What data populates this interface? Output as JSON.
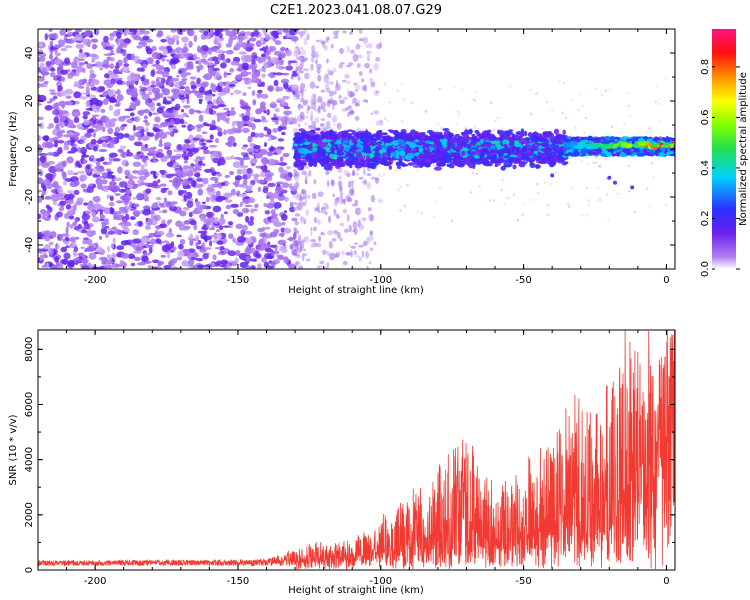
{
  "title": "C2E1.2023.041.08.07.G29",
  "colors": {
    "snr_line": "#f03a32",
    "axis": "#000000"
  },
  "chart_data": [
    {
      "type": "heatmap",
      "title": "C2E1.2023.041.08.07.G29",
      "xlabel": "Height of straight line (km)",
      "ylabel": "Frequency (Hz)",
      "xlim": [
        -220,
        3
      ],
      "ylim": [
        -50,
        50
      ],
      "x_ticks": [
        -200,
        -150,
        -100,
        -50,
        0
      ],
      "y_ticks": [
        -40,
        -20,
        0,
        20,
        40
      ],
      "x_tick_labels": [
        "-200",
        "-150",
        "-100",
        "-50",
        "0"
      ],
      "y_tick_labels": [
        "-40",
        "-20",
        "0",
        "20",
        "40"
      ],
      "colorbar": {
        "label": "Normalized spectral amplitude",
        "range": [
          0,
          0.95
        ],
        "ticks": [
          0,
          0.2,
          0.4,
          0.6,
          0.8
        ],
        "tick_labels": [
          "0.0",
          "0.2",
          "0.4",
          "0.6",
          "0.8"
        ],
        "colormap": "rainbow"
      },
      "regions": [
        {
          "x_range": [
            -220,
            -130
          ],
          "freq_range": [
            -50,
            50
          ],
          "amplitude": 0.1,
          "pattern": "broadband noise"
        },
        {
          "x_range": [
            -130,
            -100
          ],
          "freq_range": [
            -50,
            50
          ],
          "amplitude": 0.05,
          "pattern": "fading noise"
        },
        {
          "x_range": [
            -130,
            -35
          ],
          "freq_range": [
            -7,
            7
          ],
          "amplitude": 0.3,
          "pattern": "signal band"
        },
        {
          "x_range": [
            -35,
            0
          ],
          "freq_range": [
            -3,
            5
          ],
          "amplitude": 0.75,
          "pattern": "strong signal"
        }
      ]
    },
    {
      "type": "line",
      "xlabel": "Height of straight line (km)",
      "ylabel": "SNR (10 * v/v)",
      "xlim": [
        -220,
        3
      ],
      "ylim": [
        0,
        8700
      ],
      "x_ticks": [
        -200,
        -150,
        -100,
        -50,
        0
      ],
      "y_ticks": [
        0,
        2000,
        4000,
        6000,
        8000
      ],
      "x_tick_labels": [
        "-200",
        "-150",
        "-100",
        "-50",
        "0"
      ],
      "y_tick_labels": [
        "0",
        "2000",
        "4000",
        "6000",
        "8000"
      ],
      "envelope": {
        "x": [
          -220,
          -140,
          -130,
          -110,
          -100,
          -90,
          -80,
          -70,
          -60,
          -50,
          -40,
          -35,
          -30,
          -25,
          -20,
          -15,
          -10,
          -5,
          0,
          3
        ],
        "base": [
          200,
          220,
          300,
          350,
          450,
          600,
          700,
          800,
          800,
          900,
          1000,
          1200,
          1300,
          1200,
          1300,
          2000,
          2500,
          3000,
          5500,
          6000
        ],
        "peak": [
          350,
          380,
          800,
          1100,
          1900,
          2700,
          3900,
          5200,
          3000,
          3700,
          4600,
          5800,
          6500,
          5700,
          6800,
          8600,
          8000,
          8200,
          7900,
          7800
        ]
      }
    }
  ]
}
